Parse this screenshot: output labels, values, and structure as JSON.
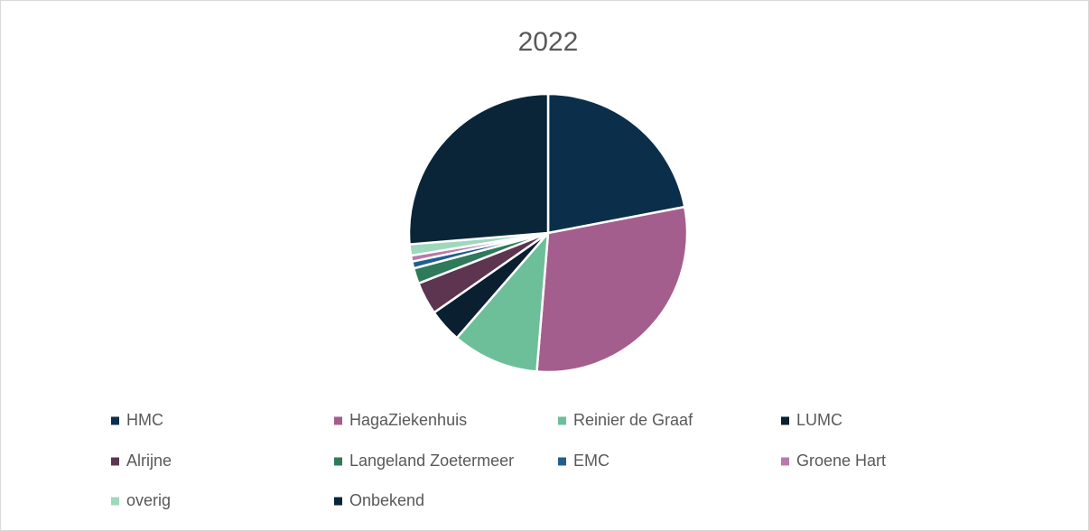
{
  "chart_data": {
    "type": "pie",
    "title": "2022",
    "categories": [
      "HMC",
      "HagaZiekenhuis",
      "Reinier de Graaf",
      "LUMC",
      "Alrijne",
      "Langeland Zoetermeer",
      "EMC",
      "Groene Hart",
      "overig",
      "Onbekend"
    ],
    "values": [
      22,
      29.3,
      10.1,
      3.9,
      3.8,
      1.8,
      0.8,
      0.7,
      1.3,
      26.3
    ],
    "colors": [
      "#0b2f4a",
      "#a45e8d",
      "#6dbf9a",
      "#0a1f30",
      "#5e3550",
      "#2e7a5a",
      "#1f5f8f",
      "#b87aab",
      "#9fd8bd",
      "#0a2538"
    ],
    "legend": "bottom"
  }
}
